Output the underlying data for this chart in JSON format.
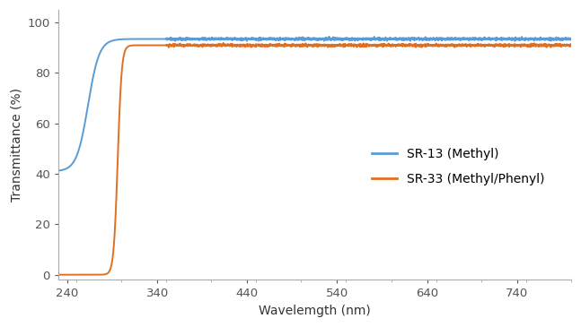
{
  "title": "",
  "xlabel": "Wavelemgth (nm)",
  "ylabel": "Transmittance (%)",
  "xlim": [
    230,
    800
  ],
  "ylim": [
    -2,
    105
  ],
  "xticks": [
    240,
    340,
    440,
    540,
    640,
    740
  ],
  "yticks": [
    0,
    20,
    40,
    60,
    80,
    100
  ],
  "sr13_color": "#5B9BD5",
  "sr33_color": "#E07020",
  "legend_labels": [
    "SR-13 (Methyl)",
    "SR-33 (Methyl/Phenyl)"
  ],
  "sr13_x0": 263,
  "sr13_k": 0.16,
  "sr13_low": 41.0,
  "sr13_high": 93.5,
  "sr33_x0": 296,
  "sr33_k": 0.45,
  "sr33_low": 0.0,
  "sr33_high": 91.0,
  "noise_scale": 0.25
}
